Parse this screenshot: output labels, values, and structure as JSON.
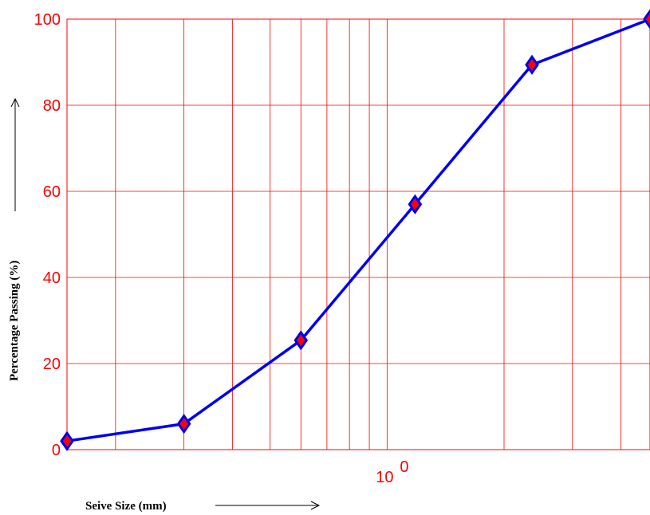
{
  "chart_data": {
    "type": "line",
    "xlabel": "Seive Size (mm)",
    "ylabel": "Percentage Passing (%)",
    "x_scale": "log",
    "xlim": [
      0.15,
      4.75
    ],
    "ylim": [
      0,
      100
    ],
    "y_ticks": [
      {
        "value": 0,
        "label": "0"
      },
      {
        "value": 20,
        "label": "20"
      },
      {
        "value": 40,
        "label": "40"
      },
      {
        "value": 60,
        "label": "60"
      },
      {
        "value": 80,
        "label": "80"
      },
      {
        "value": 100,
        "label": "100"
      }
    ],
    "x_ticks": [
      {
        "value": 1,
        "base": "10",
        "exponent": "0"
      }
    ],
    "grid": true,
    "series": [
      {
        "x": [
          0.15,
          0.3,
          0.6,
          1.18,
          2.36,
          4.75
        ],
        "y": [
          2,
          6,
          25.4,
          57,
          89.4,
          100
        ]
      }
    ],
    "colors": {
      "line": "#0000ee",
      "marker_fill": "#ff0000",
      "marker_edge": "#0000ee",
      "grid": "#ff0000",
      "tick_labels": "#ff0000",
      "axis_titles": "#000000"
    },
    "arrow_glyph": "→"
  }
}
